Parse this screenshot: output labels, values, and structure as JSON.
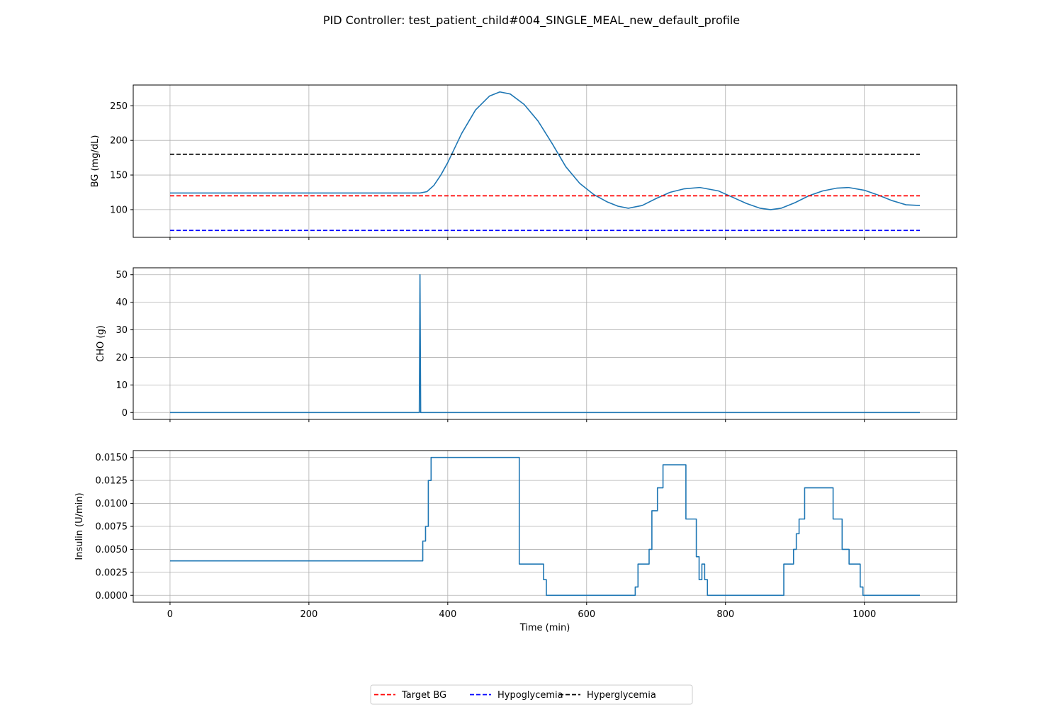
{
  "figure": {
    "title": "PID Controller: test_patient_child#004_SINGLE_MEAL_new_default_profile"
  },
  "legend": {
    "placement": "bottom-center",
    "items": [
      {
        "label": "Target BG",
        "color": "#ff0000",
        "style": "dashed"
      },
      {
        "label": "Hypoglycemia",
        "color": "#0000ff",
        "style": "dashed"
      },
      {
        "label": "Hyperglycemia",
        "color": "#000000",
        "style": "dashed"
      }
    ]
  },
  "chart_data": [
    {
      "type": "line",
      "id": "bg",
      "ylabel": "BG (mg/dL)",
      "xlabel": "",
      "xlim": [
        -53,
        1133
      ],
      "ylim": [
        60,
        280
      ],
      "x_ticks": [
        0,
        200,
        400,
        600,
        800,
        1000
      ],
      "show_x_tick_labels": false,
      "y_ticks": [
        100,
        150,
        200,
        250
      ],
      "y_tick_labels": [
        "100",
        "150",
        "200",
        "250"
      ],
      "grid": true,
      "series": [
        {
          "color": "#1f77b4",
          "x": [
            0,
            100,
            200,
            300,
            360,
            370,
            380,
            390,
            400,
            420,
            440,
            460,
            475,
            490,
            510,
            530,
            550,
            570,
            590,
            610,
            630,
            645,
            660,
            680,
            700,
            720,
            740,
            763,
            790,
            810,
            830,
            850,
            865,
            880,
            900,
            920,
            940,
            960,
            977,
            1000,
            1020,
            1040,
            1060,
            1080
          ],
          "y": [
            124,
            124,
            124,
            124,
            124,
            126,
            135,
            150,
            168,
            210,
            244,
            264,
            270,
            267,
            252,
            228,
            196,
            162,
            138,
            122,
            111,
            105,
            102,
            106,
            116,
            125,
            130,
            132,
            127,
            118,
            109,
            102,
            100,
            102,
            110,
            120,
            127,
            131,
            132,
            128,
            121,
            113,
            107,
            106
          ]
        },
        {
          "name": "Target BG",
          "color": "#ff0000",
          "dashed": true,
          "x": [
            0,
            1080
          ],
          "y": [
            120,
            120
          ]
        },
        {
          "name": "Hypoglycemia",
          "color": "#0000ff",
          "dashed": true,
          "x": [
            0,
            1080
          ],
          "y": [
            70,
            70
          ]
        },
        {
          "name": "Hyperglycemia",
          "color": "#000000",
          "dashed": true,
          "x": [
            0,
            1080
          ],
          "y": [
            180,
            180
          ]
        }
      ]
    },
    {
      "type": "line",
      "id": "cho",
      "ylabel": "CHO (g)",
      "xlabel": "",
      "xlim": [
        -53,
        1133
      ],
      "ylim": [
        -2.5,
        52.5
      ],
      "x_ticks": [
        0,
        200,
        400,
        600,
        800,
        1000
      ],
      "show_x_tick_labels": false,
      "y_ticks": [
        0,
        10,
        20,
        30,
        40,
        50
      ],
      "y_tick_labels": [
        "0",
        "10",
        "20",
        "30",
        "40",
        "50"
      ],
      "grid": true,
      "series": [
        {
          "color": "#1f77b4",
          "x": [
            0,
            359,
            360,
            361,
            1080
          ],
          "y": [
            0,
            0,
            50,
            0,
            0
          ]
        }
      ]
    },
    {
      "type": "line",
      "id": "insulin",
      "ylabel": "Insulin (U/min)",
      "xlabel": "Time (min)",
      "xlim": [
        -53,
        1133
      ],
      "ylim": [
        -0.00075,
        0.01575
      ],
      "x_ticks": [
        0,
        200,
        400,
        600,
        800,
        1000
      ],
      "x_tick_labels": [
        "0",
        "200",
        "400",
        "600",
        "800",
        "1000"
      ],
      "show_x_tick_labels": true,
      "y_ticks": [
        0,
        0.0025,
        0.005,
        0.0075,
        0.01,
        0.0125,
        0.015
      ],
      "y_tick_labels": [
        "0.0000",
        "0.0025",
        "0.0050",
        "0.0075",
        "0.0100",
        "0.0125",
        "0.0150"
      ],
      "grid": true,
      "series": [
        {
          "color": "#1f77b4",
          "x": [
            0,
            364,
            364,
            368,
            368,
            372,
            372,
            376,
            376,
            380,
            380,
            503,
            503,
            538,
            538,
            542,
            542,
            670,
            670,
            674,
            674,
            690,
            690,
            694,
            694,
            702,
            702,
            710,
            710,
            720,
            720,
            743,
            743,
            758,
            758,
            762,
            762,
            766,
            766,
            770,
            770,
            774,
            774,
            778,
            778,
            782,
            782,
            884,
            884,
            898,
            898,
            902,
            902,
            906,
            906,
            914,
            914,
            922,
            922,
            955,
            955,
            968,
            968,
            978,
            978,
            994,
            994,
            998,
            998,
            1080
          ],
          "y": [
            0.00375,
            0.00375,
            0.0059,
            0.0059,
            0.0075,
            0.0075,
            0.0125,
            0.0125,
            0.015,
            0.015,
            0.015,
            0.015,
            0.0034,
            0.0034,
            0.0017,
            0.0017,
            0,
            0,
            0.0009,
            0.0009,
            0.0034,
            0.0034,
            0.005,
            0.005,
            0.0092,
            0.0092,
            0.0117,
            0.0117,
            0.0142,
            0.0142,
            0.0142,
            0.0142,
            0.0083,
            0.0083,
            0.0042,
            0.0042,
            0.0017,
            0.0017,
            0.0034,
            0.0034,
            0.0017,
            0.0017,
            0,
            0,
            0,
            0,
            0,
            0,
            0.0034,
            0.0034,
            0.005,
            0.005,
            0.0067,
            0.0067,
            0.0083,
            0.0083,
            0.0117,
            0.0117,
            0.0117,
            0.0117,
            0.0083,
            0.0083,
            0.005,
            0.005,
            0.0034,
            0.0034,
            0.0009,
            0.0009,
            0,
            0
          ]
        }
      ]
    }
  ]
}
